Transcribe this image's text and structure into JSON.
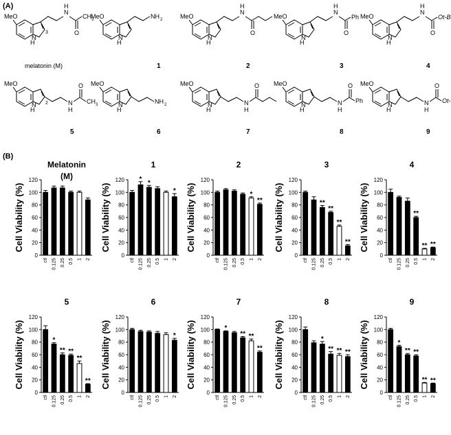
{
  "panel_labels": {
    "a": "(A)",
    "b": "(B)"
  },
  "structures": [
    {
      "id": "M",
      "caption": "melatonin (M)",
      "row": 1,
      "substituent": "C(=O)CH3",
      "amine": "amide"
    },
    {
      "id": "1",
      "caption": "1",
      "row": 1,
      "substituent": "NH2",
      "amine": "free"
    },
    {
      "id": "2",
      "caption": "2",
      "row": 1,
      "substituent": "C(=O)CH2CH2CH3",
      "amine": "amide"
    },
    {
      "id": "3",
      "caption": "3",
      "row": 1,
      "substituent": "C(=O)Ph",
      "amine": "amide"
    },
    {
      "id": "4",
      "caption": "4",
      "row": 1,
      "substituent": "C(=O)Ot-Bu",
      "amine": "amide"
    },
    {
      "id": "5",
      "caption": "5",
      "row": 2,
      "substituent": "C(=O)CH3",
      "amine": "amide"
    },
    {
      "id": "6",
      "caption": "6",
      "row": 2,
      "substituent": "NH2",
      "amine": "free"
    },
    {
      "id": "7",
      "caption": "7",
      "row": 2,
      "substituent": "C(=O)CH2CH2CH3",
      "amine": "amide"
    },
    {
      "id": "8",
      "caption": "8",
      "row": 2,
      "substituent": "C(=O)Ph",
      "amine": "amide"
    },
    {
      "id": "9",
      "caption": "9",
      "row": 2,
      "substituent": "C(=O)Ot-Bu",
      "amine": "amide"
    }
  ],
  "structure_text": {
    "methoxy": "MeO",
    "indole_h": "H",
    "indole_n": "N",
    "amide_nh": "N",
    "amide_h": "H",
    "carbonyl_o": "O",
    "amine": "NH",
    "amine_sub": "2",
    "ph": "Ph",
    "otbu": "Ot-Bu",
    "ch3": "CH",
    "ch3_sub": "3",
    "pos3": "3",
    "pos2": "2"
  },
  "chart_data": [
    {
      "type": "bar",
      "title": "Melatonin\n(M)",
      "categories": [
        "ctl",
        "0.125",
        "0.25",
        "0.5",
        "1",
        "2"
      ],
      "values": [
        100,
        107,
        107,
        100,
        100,
        88
      ],
      "errors": [
        3,
        3,
        3,
        2,
        2,
        3
      ],
      "fills": [
        "black",
        "black",
        "black",
        "black",
        "white",
        "black"
      ],
      "sig": [
        "",
        "",
        "",
        "",
        "",
        ""
      ],
      "ylabel": "Cell Viability (%)",
      "ylim": [
        0,
        120
      ]
    },
    {
      "type": "bar",
      "title": "1",
      "categories": [
        "ctl",
        "0.125",
        "0.25",
        "0.5",
        "1",
        "2"
      ],
      "values": [
        100,
        112,
        108,
        106,
        100,
        93
      ],
      "errors": [
        3,
        5,
        3,
        3,
        2,
        5
      ],
      "fills": [
        "black",
        "black",
        "black",
        "black",
        "white",
        "black"
      ],
      "sig": [
        "",
        "*",
        "*",
        "",
        "",
        "*"
      ],
      "ylabel": "Cell Viability (%)",
      "ylim": [
        0,
        120
      ]
    },
    {
      "type": "bar",
      "title": "2",
      "categories": [
        "ctl",
        "0.125",
        "0.25",
        "0.5",
        "1",
        "2"
      ],
      "values": [
        100,
        104,
        102,
        97,
        91,
        81
      ],
      "errors": [
        2,
        2,
        2,
        2,
        2,
        2
      ],
      "fills": [
        "black",
        "black",
        "black",
        "black",
        "white",
        "black"
      ],
      "sig": [
        "",
        "",
        "",
        "",
        "*",
        "**"
      ],
      "ylabel": "Cell Viability (%)",
      "ylim": [
        0,
        120
      ]
    },
    {
      "type": "bar",
      "title": "3",
      "categories": [
        "ctl",
        "0.125",
        "0.25",
        "0.5",
        "1",
        "2"
      ],
      "values": [
        100,
        88,
        76,
        68,
        46,
        15
      ],
      "errors": [
        2,
        5,
        3,
        2,
        2,
        2
      ],
      "fills": [
        "black",
        "black",
        "black",
        "black",
        "white",
        "black"
      ],
      "sig": [
        "",
        "",
        "**",
        "**",
        "**",
        "**"
      ],
      "ylabel": "Cell Viability (%)",
      "ylim": [
        0,
        120
      ]
    },
    {
      "type": "bar",
      "title": "4",
      "categories": [
        "ctl",
        "0.125",
        "0.25",
        "0.5",
        "1",
        "2"
      ],
      "values": [
        100,
        92,
        86,
        60,
        10,
        12
      ],
      "errors": [
        5,
        2,
        5,
        2,
        1,
        1
      ],
      "fills": [
        "black",
        "black",
        "black",
        "black",
        "white",
        "black"
      ],
      "sig": [
        "",
        "",
        "",
        "**",
        "**",
        "**"
      ],
      "ylabel": "Cell Viability (%)",
      "ylim": [
        0,
        120
      ]
    },
    {
      "type": "bar",
      "title": "5",
      "categories": [
        "ctl",
        "0.125",
        "0.25",
        "0.5",
        "1",
        "2"
      ],
      "values": [
        100,
        77,
        60,
        59,
        46,
        13
      ],
      "errors": [
        6,
        2,
        3,
        2,
        4,
        1
      ],
      "fills": [
        "black",
        "black",
        "black",
        "black",
        "white",
        "black"
      ],
      "sig": [
        "",
        "*",
        "**",
        "**",
        "**",
        "**"
      ],
      "ylabel": "Cell Viability (%)",
      "ylim": [
        0,
        120
      ]
    },
    {
      "type": "bar",
      "title": "6",
      "categories": [
        "ctl",
        "0.125",
        "0.25",
        "0.5",
        "1",
        "2"
      ],
      "values": [
        100,
        97,
        96,
        94,
        92,
        83
      ],
      "errors": [
        2,
        2,
        2,
        3,
        3,
        3
      ],
      "fills": [
        "black",
        "black",
        "black",
        "black",
        "white",
        "black"
      ],
      "sig": [
        "",
        "",
        "",
        "",
        "",
        "*"
      ],
      "ylabel": "Cell Viability (%)",
      "ylim": [
        0,
        120
      ]
    },
    {
      "type": "bar",
      "title": "7",
      "categories": [
        "ctl",
        "0.125",
        "0.25",
        "0.5",
        "1",
        "2"
      ],
      "values": [
        100,
        97,
        95,
        87,
        82,
        64
      ],
      "errors": [
        1,
        1,
        2,
        2,
        3,
        2
      ],
      "fills": [
        "black",
        "black",
        "black",
        "black",
        "white",
        "black"
      ],
      "sig": [
        "",
        "*",
        "",
        "**",
        "**",
        "**"
      ],
      "ylabel": "Cell Viability (%)",
      "ylim": [
        0,
        120
      ]
    },
    {
      "type": "bar",
      "title": "8",
      "categories": [
        "ctl",
        "0.125",
        "0.25",
        "0.5",
        "1",
        "2"
      ],
      "values": [
        100,
        79,
        77,
        61,
        59,
        57
      ],
      "errors": [
        4,
        3,
        4,
        4,
        3,
        3
      ],
      "fills": [
        "black",
        "black",
        "black",
        "black",
        "white",
        "black"
      ],
      "sig": [
        "",
        "",
        "*",
        "**",
        "**",
        "**"
      ],
      "ylabel": "Cell Viability (%)",
      "ylim": [
        0,
        120
      ]
    },
    {
      "type": "bar",
      "title": "9",
      "categories": [
        "ctl",
        "0.125",
        "0.25",
        "0.5",
        "1",
        "2"
      ],
      "values": [
        100,
        73,
        60,
        58,
        15,
        14
      ],
      "errors": [
        2,
        2,
        2,
        2,
        1,
        1
      ],
      "fills": [
        "black",
        "black",
        "black",
        "black",
        "white",
        "black"
      ],
      "sig": [
        "",
        "*",
        "**",
        "**",
        "**",
        "**"
      ],
      "ylabel": "Cell Viability (%)",
      "ylim": [
        0,
        120
      ]
    }
  ]
}
